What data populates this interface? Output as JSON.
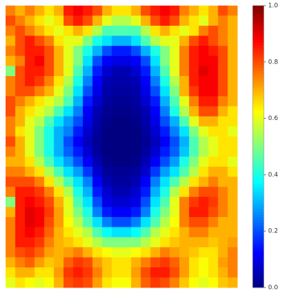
{
  "chart_data": {
    "type": "heatmap",
    "colormap": "jet",
    "zlim": [
      0,
      1
    ],
    "zticks": [
      {
        "value": 0,
        "label": "0.0"
      },
      0.2,
      0.4,
      0.6,
      0.8,
      {
        "value": 1,
        "label": "1.0"
      }
    ],
    "values": [
      [
        0.75,
        0.7,
        0.75,
        0.7,
        0.65,
        0.7,
        0.85,
        0.88,
        0.85,
        0.8,
        0.7,
        0.65,
        0.65,
        0.7,
        0.8,
        0.85,
        0.88,
        0.85,
        0.75,
        0.7,
        0.65,
        0.7,
        0.8,
        0.75
      ],
      [
        0.8,
        0.75,
        0.7,
        0.65,
        0.6,
        0.65,
        0.8,
        0.85,
        0.8,
        0.7,
        0.6,
        0.55,
        0.55,
        0.6,
        0.7,
        0.8,
        0.85,
        0.8,
        0.7,
        0.65,
        0.6,
        0.7,
        0.75,
        0.7
      ],
      [
        0.75,
        0.8,
        0.75,
        0.7,
        0.65,
        0.6,
        0.65,
        0.7,
        0.65,
        0.55,
        0.45,
        0.45,
        0.45,
        0.45,
        0.55,
        0.65,
        0.7,
        0.65,
        0.6,
        0.65,
        0.75,
        0.8,
        0.75,
        0.7
      ],
      [
        0.7,
        0.8,
        0.85,
        0.8,
        0.75,
        0.65,
        0.6,
        0.6,
        0.5,
        0.4,
        0.35,
        0.3,
        0.3,
        0.35,
        0.45,
        0.55,
        0.6,
        0.6,
        0.7,
        0.8,
        0.85,
        0.8,
        0.75,
        0.7
      ],
      [
        0.75,
        0.8,
        0.85,
        0.85,
        0.8,
        0.7,
        0.6,
        0.5,
        0.4,
        0.3,
        0.2,
        0.15,
        0.15,
        0.2,
        0.3,
        0.4,
        0.5,
        0.6,
        0.75,
        0.85,
        0.88,
        0.85,
        0.8,
        0.7
      ],
      [
        0.7,
        0.75,
        0.85,
        0.88,
        0.8,
        0.7,
        0.6,
        0.5,
        0.35,
        0.2,
        0.12,
        0.1,
        0.1,
        0.12,
        0.2,
        0.35,
        0.5,
        0.6,
        0.75,
        0.85,
        0.88,
        0.88,
        0.8,
        0.7
      ],
      [
        0.5,
        0.8,
        0.85,
        0.85,
        0.8,
        0.7,
        0.6,
        0.45,
        0.3,
        0.15,
        0.08,
        0.05,
        0.05,
        0.08,
        0.15,
        0.3,
        0.45,
        0.6,
        0.75,
        0.85,
        0.9,
        0.88,
        0.8,
        0.7
      ],
      [
        0.75,
        0.8,
        0.85,
        0.82,
        0.75,
        0.65,
        0.55,
        0.4,
        0.25,
        0.12,
        0.05,
        0.04,
        0.04,
        0.05,
        0.12,
        0.25,
        0.4,
        0.55,
        0.7,
        0.85,
        0.88,
        0.88,
        0.8,
        0.7
      ],
      [
        0.75,
        0.8,
        0.8,
        0.75,
        0.7,
        0.6,
        0.5,
        0.35,
        0.2,
        0.1,
        0.04,
        0.03,
        0.03,
        0.04,
        0.1,
        0.2,
        0.35,
        0.5,
        0.7,
        0.82,
        0.88,
        0.88,
        0.8,
        0.7
      ],
      [
        0.8,
        0.75,
        0.7,
        0.65,
        0.6,
        0.55,
        0.45,
        0.3,
        0.15,
        0.08,
        0.03,
        0.02,
        0.02,
        0.03,
        0.08,
        0.15,
        0.3,
        0.45,
        0.6,
        0.75,
        0.85,
        0.85,
        0.75,
        0.7
      ],
      [
        0.8,
        0.7,
        0.65,
        0.6,
        0.55,
        0.45,
        0.35,
        0.25,
        0.12,
        0.05,
        0.02,
        0.01,
        0.01,
        0.02,
        0.05,
        0.12,
        0.25,
        0.4,
        0.55,
        0.7,
        0.8,
        0.8,
        0.7,
        0.65
      ],
      [
        0.75,
        0.7,
        0.6,
        0.55,
        0.45,
        0.35,
        0.28,
        0.2,
        0.1,
        0.04,
        0.01,
        0,
        0,
        0.01,
        0.04,
        0.1,
        0.2,
        0.3,
        0.45,
        0.6,
        0.7,
        0.7,
        0.65,
        0.65
      ],
      [
        0.75,
        0.65,
        0.6,
        0.5,
        0.4,
        0.3,
        0.25,
        0.15,
        0.08,
        0.03,
        0,
        0,
        0,
        0,
        0.03,
        0.08,
        0.15,
        0.25,
        0.35,
        0.5,
        0.6,
        0.65,
        0.65,
        0.6
      ],
      [
        0.8,
        0.7,
        0.6,
        0.5,
        0.4,
        0.3,
        0.2,
        0.12,
        0.06,
        0.02,
        0,
        0,
        0,
        0,
        0.02,
        0.06,
        0.12,
        0.2,
        0.3,
        0.45,
        0.55,
        0.6,
        0.65,
        0.65
      ],
      [
        0.75,
        0.7,
        0.6,
        0.5,
        0.4,
        0.3,
        0.22,
        0.15,
        0.08,
        0.03,
        0,
        0,
        0,
        0,
        0.03,
        0.08,
        0.15,
        0.22,
        0.32,
        0.45,
        0.55,
        0.6,
        0.65,
        0.65
      ],
      [
        0.7,
        0.7,
        0.65,
        0.55,
        0.45,
        0.35,
        0.28,
        0.2,
        0.12,
        0.05,
        0.01,
        0,
        0,
        0.01,
        0.05,
        0.12,
        0.2,
        0.28,
        0.4,
        0.5,
        0.6,
        0.65,
        0.65,
        0.6
      ],
      [
        0.75,
        0.75,
        0.7,
        0.65,
        0.55,
        0.45,
        0.35,
        0.28,
        0.18,
        0.08,
        0.03,
        0.02,
        0.02,
        0.03,
        0.08,
        0.18,
        0.28,
        0.35,
        0.45,
        0.55,
        0.65,
        0.7,
        0.7,
        0.65
      ],
      [
        0.8,
        0.8,
        0.8,
        0.75,
        0.65,
        0.55,
        0.45,
        0.35,
        0.25,
        0.12,
        0.05,
        0.03,
        0.03,
        0.05,
        0.12,
        0.25,
        0.35,
        0.45,
        0.55,
        0.65,
        0.7,
        0.75,
        0.7,
        0.7
      ],
      [
        0.75,
        0.85,
        0.85,
        0.82,
        0.75,
        0.65,
        0.55,
        0.4,
        0.3,
        0.15,
        0.08,
        0.05,
        0.05,
        0.08,
        0.15,
        0.3,
        0.4,
        0.55,
        0.65,
        0.75,
        0.8,
        0.8,
        0.75,
        0.7
      ],
      [
        0.5,
        0.85,
        0.88,
        0.85,
        0.8,
        0.7,
        0.6,
        0.45,
        0.35,
        0.2,
        0.1,
        0.08,
        0.08,
        0.1,
        0.2,
        0.35,
        0.45,
        0.6,
        0.75,
        0.82,
        0.85,
        0.82,
        0.75,
        0.7
      ],
      [
        0.7,
        0.85,
        0.9,
        0.88,
        0.82,
        0.72,
        0.6,
        0.5,
        0.4,
        0.25,
        0.15,
        0.12,
        0.12,
        0.15,
        0.25,
        0.4,
        0.5,
        0.6,
        0.75,
        0.85,
        0.85,
        0.8,
        0.75,
        0.7
      ],
      [
        0.75,
        0.85,
        0.9,
        0.88,
        0.8,
        0.72,
        0.62,
        0.55,
        0.45,
        0.35,
        0.25,
        0.2,
        0.2,
        0.25,
        0.35,
        0.45,
        0.55,
        0.62,
        0.75,
        0.8,
        0.8,
        0.75,
        0.7,
        0.7
      ],
      [
        0.75,
        0.85,
        0.88,
        0.85,
        0.78,
        0.7,
        0.65,
        0.6,
        0.55,
        0.45,
        0.38,
        0.35,
        0.35,
        0.38,
        0.45,
        0.55,
        0.6,
        0.65,
        0.7,
        0.75,
        0.75,
        0.7,
        0.7,
        0.7
      ],
      [
        0.75,
        0.85,
        0.85,
        0.82,
        0.75,
        0.7,
        0.68,
        0.65,
        0.6,
        0.55,
        0.5,
        0.5,
        0.5,
        0.5,
        0.55,
        0.6,
        0.65,
        0.68,
        0.7,
        0.7,
        0.7,
        0.68,
        0.7,
        0.72
      ],
      [
        0.75,
        0.8,
        0.82,
        0.78,
        0.72,
        0.7,
        0.72,
        0.75,
        0.7,
        0.65,
        0.62,
        0.6,
        0.6,
        0.62,
        0.65,
        0.7,
        0.75,
        0.72,
        0.7,
        0.68,
        0.65,
        0.65,
        0.7,
        0.75
      ],
      [
        0.7,
        0.75,
        0.78,
        0.72,
        0.68,
        0.7,
        0.78,
        0.82,
        0.8,
        0.72,
        0.68,
        0.65,
        0.65,
        0.7,
        0.75,
        0.8,
        0.82,
        0.78,
        0.72,
        0.65,
        0.62,
        0.65,
        0.72,
        0.75
      ],
      [
        0.65,
        0.7,
        0.7,
        0.65,
        0.65,
        0.72,
        0.82,
        0.85,
        0.82,
        0.75,
        0.68,
        0.65,
        0.65,
        0.72,
        0.8,
        0.85,
        0.85,
        0.8,
        0.72,
        0.65,
        0.62,
        0.65,
        0.7,
        0.75
      ],
      [
        0.6,
        0.65,
        0.62,
        0.6,
        0.62,
        0.7,
        0.8,
        0.82,
        0.8,
        0.72,
        0.65,
        0.62,
        0.62,
        0.7,
        0.78,
        0.82,
        0.8,
        0.75,
        0.68,
        0.62,
        0.6,
        0.62,
        0.68,
        0.7
      ]
    ]
  }
}
